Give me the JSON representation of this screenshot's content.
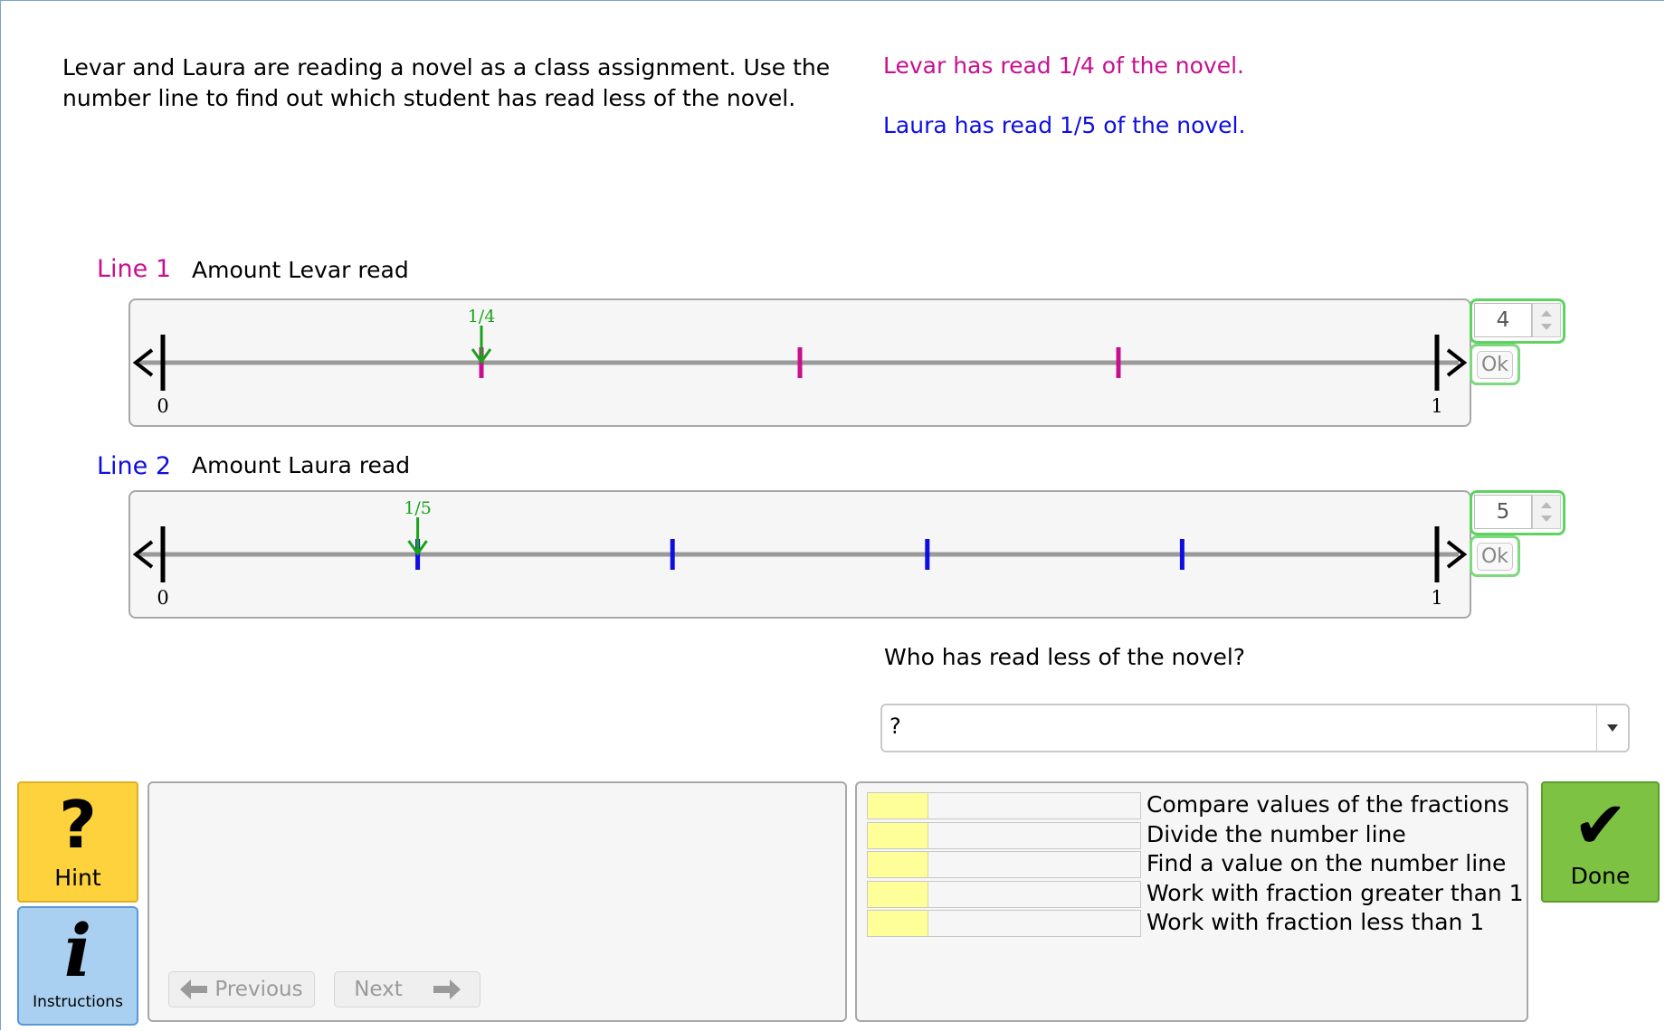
{
  "problem": {
    "text": "Levar and Laura are reading a novel as a class assignment. Use the number line to find out which student has read less of the novel.",
    "info_levar": "Levar has read 1/4 of the novel.",
    "info_laura": "Laura has read 1/5 of the novel.",
    "colors": {
      "levar": "#c8108e",
      "laura": "#0e0ee0",
      "marker": "#1aa31a"
    }
  },
  "lines": [
    {
      "title": "Line 1",
      "description": "Amount Levar read",
      "start_label": "0",
      "end_label": "1",
      "divisions": 4,
      "marker_label": "1/4",
      "marker_value": 0.25,
      "spinner_value": "4",
      "ok_label": "Ok"
    },
    {
      "title": "Line 2",
      "description": "Amount Laura read",
      "start_label": "0",
      "end_label": "1",
      "divisions": 5,
      "marker_label": "1/5",
      "marker_value": 0.2,
      "spinner_value": "5",
      "ok_label": "Ok"
    }
  ],
  "question": {
    "text": "Who has read less of the novel?",
    "selected": "?"
  },
  "buttons": {
    "hint_glyph": "?",
    "hint": "Hint",
    "instructions_glyph": "i",
    "instructions": "Instructions",
    "previous": "Previous",
    "next": "Next",
    "done_glyph": "✔",
    "done": "Done"
  },
  "skills": [
    {
      "label": "Compare values of the fractions",
      "level": 0.22
    },
    {
      "label": "Divide the number line",
      "level": 0.22
    },
    {
      "label": "Find a value on the number line",
      "level": 0.22
    },
    {
      "label": "Work with fraction greater than 1",
      "level": 0.22
    },
    {
      "label": "Work with fraction less than 1",
      "level": 0.22
    }
  ]
}
